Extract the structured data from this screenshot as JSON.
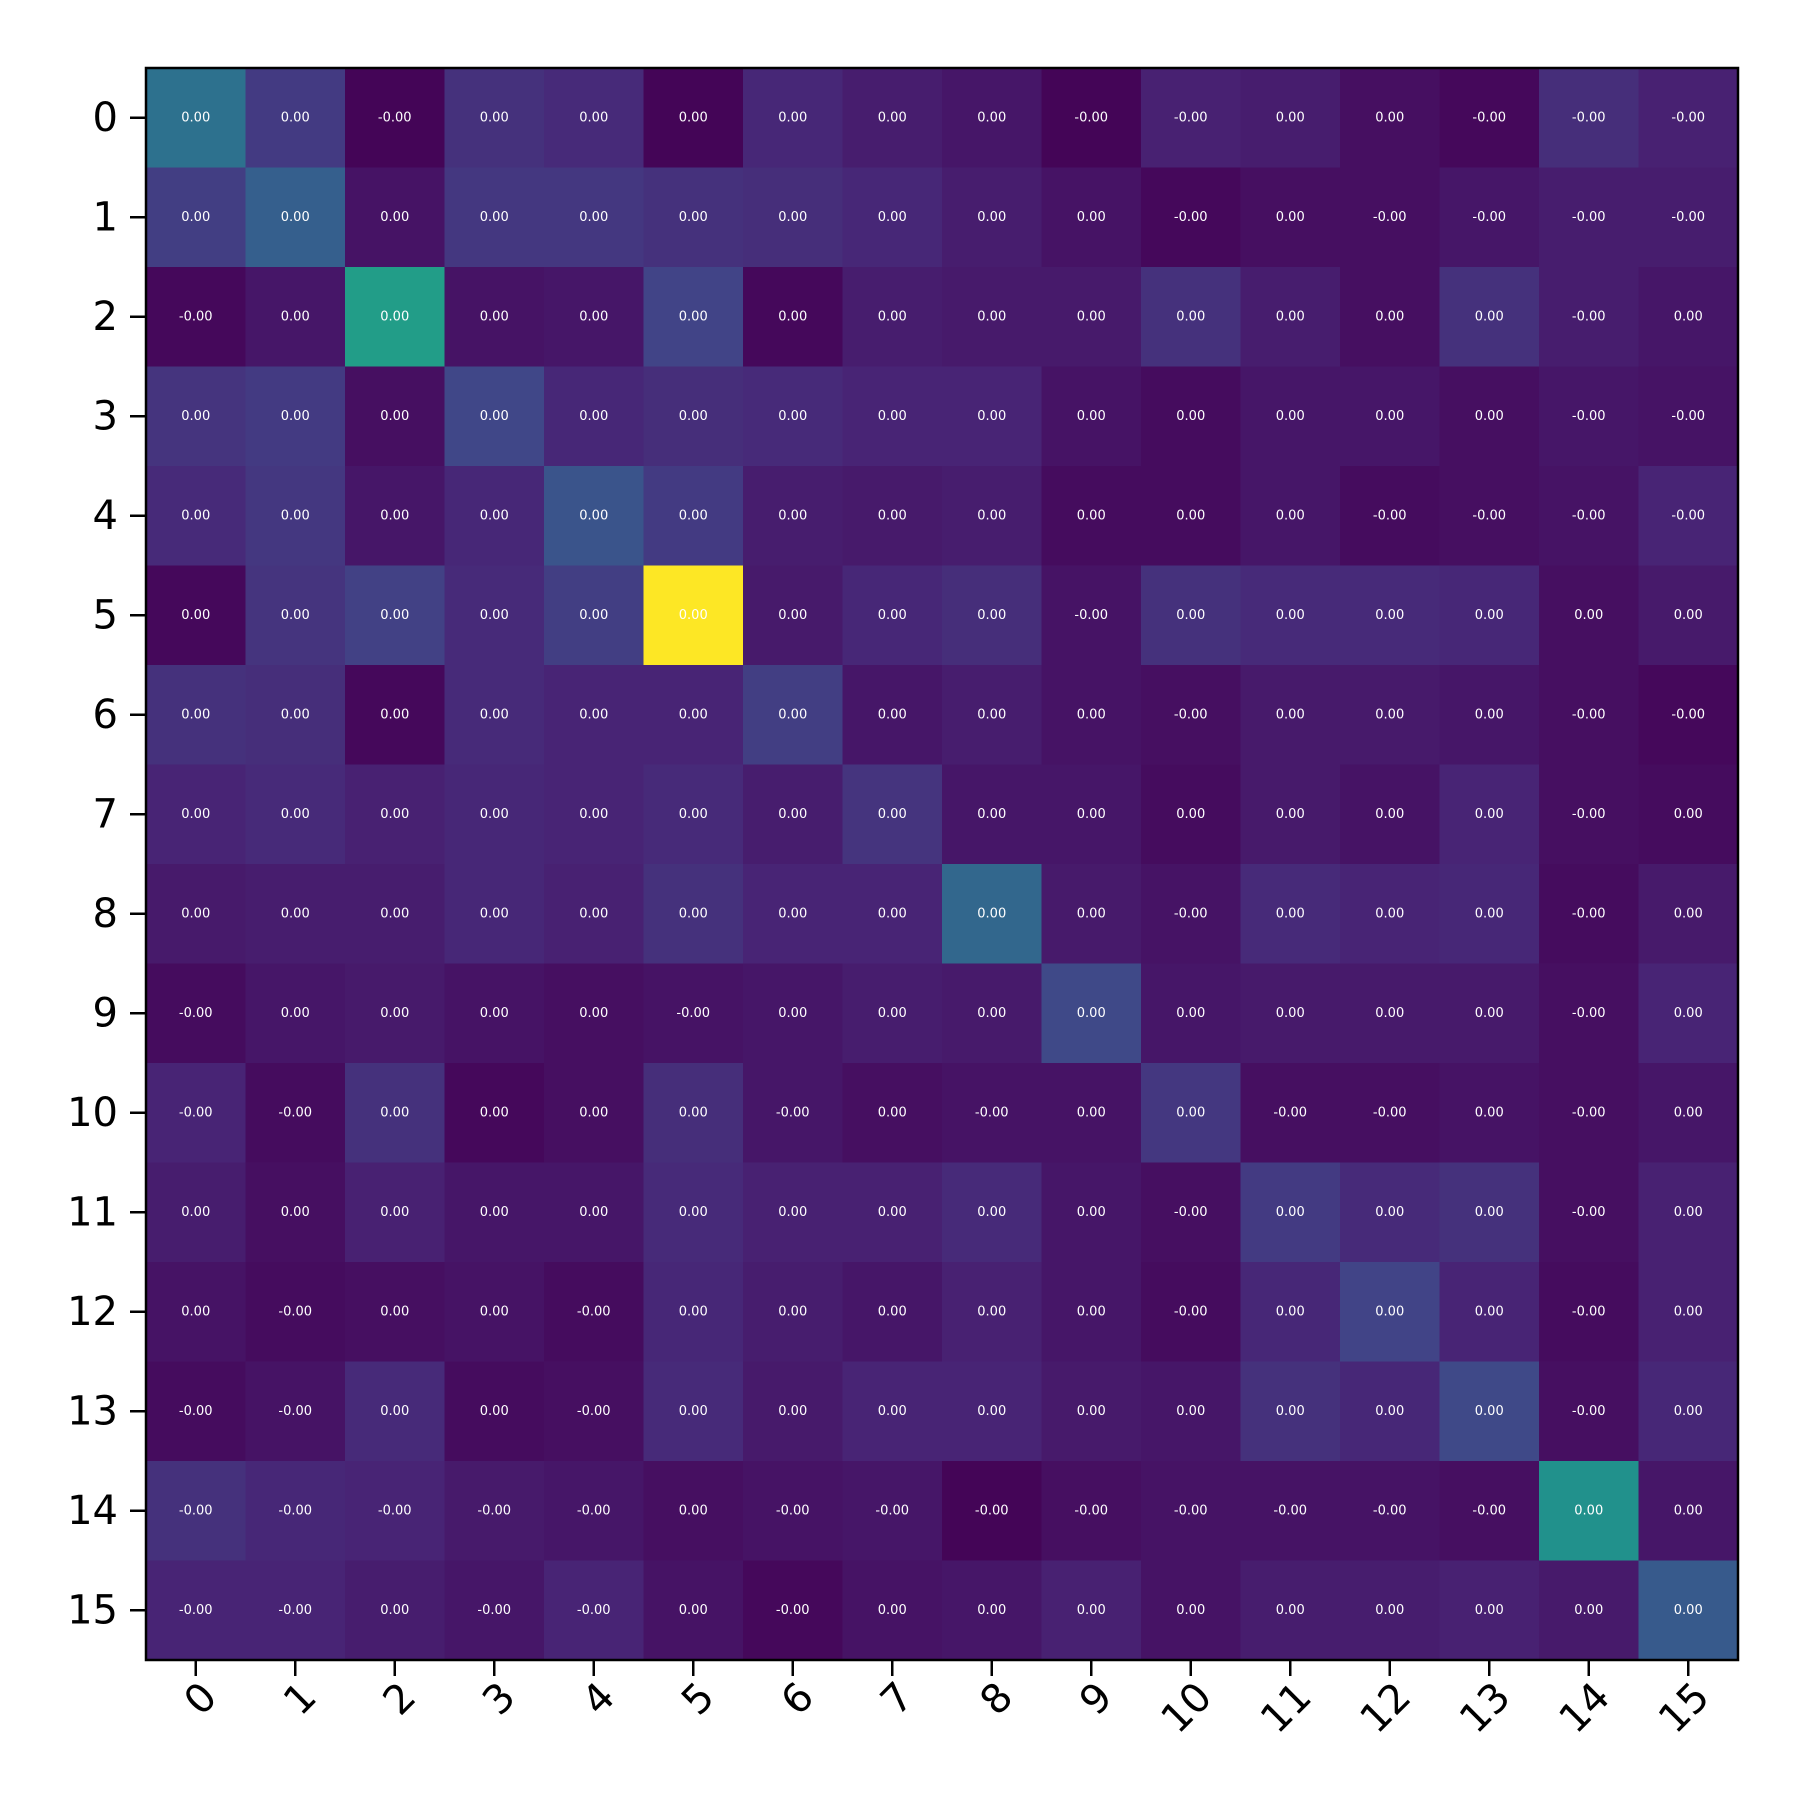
{
  "chart_data": {
    "type": "heatmap",
    "title": "",
    "xlabel": "",
    "ylabel": "",
    "colormap": "viridis",
    "x_categories": [
      "0",
      "1",
      "2",
      "3",
      "4",
      "5",
      "6",
      "7",
      "8",
      "9",
      "10",
      "11",
      "12",
      "13",
      "14",
      "15"
    ],
    "y_categories": [
      "0",
      "1",
      "2",
      "3",
      "4",
      "5",
      "6",
      "7",
      "8",
      "9",
      "10",
      "11",
      "12",
      "13",
      "14",
      "15"
    ],
    "labels": [
      [
        "0.00",
        "0.00",
        "-0.00",
        "0.00",
        "0.00",
        "0.00",
        "0.00",
        "0.00",
        "0.00",
        "-0.00",
        "-0.00",
        "0.00",
        "0.00",
        "-0.00",
        "-0.00",
        "-0.00"
      ],
      [
        "0.00",
        "0.00",
        "0.00",
        "0.00",
        "0.00",
        "0.00",
        "0.00",
        "0.00",
        "0.00",
        "0.00",
        "-0.00",
        "0.00",
        "-0.00",
        "-0.00",
        "-0.00",
        "-0.00"
      ],
      [
        "-0.00",
        "0.00",
        "0.00",
        "0.00",
        "0.00",
        "0.00",
        "0.00",
        "0.00",
        "0.00",
        "0.00",
        "0.00",
        "0.00",
        "0.00",
        "0.00",
        "-0.00",
        "0.00"
      ],
      [
        "0.00",
        "0.00",
        "0.00",
        "0.00",
        "0.00",
        "0.00",
        "0.00",
        "0.00",
        "0.00",
        "0.00",
        "0.00",
        "0.00",
        "0.00",
        "0.00",
        "-0.00",
        "-0.00"
      ],
      [
        "0.00",
        "0.00",
        "0.00",
        "0.00",
        "0.00",
        "0.00",
        "0.00",
        "0.00",
        "0.00",
        "0.00",
        "0.00",
        "0.00",
        "-0.00",
        "-0.00",
        "-0.00",
        "-0.00"
      ],
      [
        "0.00",
        "0.00",
        "0.00",
        "0.00",
        "0.00",
        "0.00",
        "0.00",
        "0.00",
        "0.00",
        "-0.00",
        "0.00",
        "0.00",
        "0.00",
        "0.00",
        "0.00",
        "0.00"
      ],
      [
        "0.00",
        "0.00",
        "0.00",
        "0.00",
        "0.00",
        "0.00",
        "0.00",
        "0.00",
        "0.00",
        "0.00",
        "-0.00",
        "0.00",
        "0.00",
        "0.00",
        "-0.00",
        "-0.00"
      ],
      [
        "0.00",
        "0.00",
        "0.00",
        "0.00",
        "0.00",
        "0.00",
        "0.00",
        "0.00",
        "0.00",
        "0.00",
        "0.00",
        "0.00",
        "0.00",
        "0.00",
        "-0.00",
        "0.00"
      ],
      [
        "0.00",
        "0.00",
        "0.00",
        "0.00",
        "0.00",
        "0.00",
        "0.00",
        "0.00",
        "0.00",
        "0.00",
        "-0.00",
        "0.00",
        "0.00",
        "0.00",
        "-0.00",
        "0.00"
      ],
      [
        "-0.00",
        "0.00",
        "0.00",
        "0.00",
        "0.00",
        "-0.00",
        "0.00",
        "0.00",
        "0.00",
        "0.00",
        "0.00",
        "0.00",
        "0.00",
        "0.00",
        "-0.00",
        "0.00"
      ],
      [
        "-0.00",
        "-0.00",
        "0.00",
        "0.00",
        "0.00",
        "0.00",
        "-0.00",
        "0.00",
        "-0.00",
        "0.00",
        "0.00",
        "-0.00",
        "-0.00",
        "0.00",
        "-0.00",
        "0.00"
      ],
      [
        "0.00",
        "0.00",
        "0.00",
        "0.00",
        "0.00",
        "0.00",
        "0.00",
        "0.00",
        "0.00",
        "0.00",
        "-0.00",
        "0.00",
        "0.00",
        "0.00",
        "-0.00",
        "0.00"
      ],
      [
        "0.00",
        "-0.00",
        "0.00",
        "0.00",
        "-0.00",
        "0.00",
        "0.00",
        "0.00",
        "0.00",
        "0.00",
        "-0.00",
        "0.00",
        "0.00",
        "0.00",
        "-0.00",
        "0.00"
      ],
      [
        "-0.00",
        "-0.00",
        "0.00",
        "0.00",
        "-0.00",
        "0.00",
        "0.00",
        "0.00",
        "0.00",
        "0.00",
        "0.00",
        "0.00",
        "0.00",
        "0.00",
        "-0.00",
        "0.00"
      ],
      [
        "-0.00",
        "-0.00",
        "-0.00",
        "-0.00",
        "-0.00",
        "0.00",
        "-0.00",
        "-0.00",
        "-0.00",
        "-0.00",
        "-0.00",
        "-0.00",
        "-0.00",
        "-0.00",
        "0.00",
        "0.00"
      ],
      [
        "-0.00",
        "-0.00",
        "0.00",
        "-0.00",
        "-0.00",
        "0.00",
        "-0.00",
        "0.00",
        "0.00",
        "0.00",
        "0.00",
        "0.00",
        "0.00",
        "0.00",
        "0.00",
        "0.00"
      ]
    ],
    "intensity": [
      [
        0.37,
        0.17,
        0.01,
        0.14,
        0.12,
        0.01,
        0.11,
        0.08,
        0.06,
        0.01,
        0.09,
        0.08,
        0.04,
        0.02,
        0.13,
        0.09
      ],
      [
        0.18,
        0.3,
        0.05,
        0.16,
        0.16,
        0.14,
        0.13,
        0.11,
        0.08,
        0.05,
        0.02,
        0.04,
        0.04,
        0.06,
        0.08,
        0.08
      ],
      [
        0.02,
        0.06,
        0.55,
        0.05,
        0.06,
        0.2,
        0.02,
        0.08,
        0.07,
        0.07,
        0.14,
        0.08,
        0.04,
        0.14,
        0.08,
        0.06
      ],
      [
        0.15,
        0.17,
        0.04,
        0.21,
        0.11,
        0.13,
        0.12,
        0.1,
        0.1,
        0.05,
        0.03,
        0.06,
        0.06,
        0.04,
        0.06,
        0.05
      ],
      [
        0.12,
        0.16,
        0.06,
        0.11,
        0.26,
        0.17,
        0.08,
        0.07,
        0.08,
        0.03,
        0.03,
        0.06,
        0.03,
        0.04,
        0.05,
        0.1
      ],
      [
        0.02,
        0.15,
        0.19,
        0.12,
        0.18,
        1.0,
        0.07,
        0.11,
        0.13,
        0.05,
        0.14,
        0.12,
        0.12,
        0.11,
        0.04,
        0.07
      ],
      [
        0.14,
        0.13,
        0.02,
        0.12,
        0.1,
        0.1,
        0.18,
        0.06,
        0.08,
        0.05,
        0.04,
        0.07,
        0.07,
        0.06,
        0.04,
        0.02
      ],
      [
        0.1,
        0.12,
        0.09,
        0.11,
        0.1,
        0.12,
        0.08,
        0.15,
        0.06,
        0.06,
        0.03,
        0.07,
        0.05,
        0.1,
        0.04,
        0.03
      ],
      [
        0.07,
        0.08,
        0.08,
        0.11,
        0.09,
        0.14,
        0.1,
        0.1,
        0.33,
        0.07,
        0.05,
        0.12,
        0.1,
        0.11,
        0.03,
        0.07
      ],
      [
        0.03,
        0.06,
        0.07,
        0.05,
        0.04,
        0.05,
        0.06,
        0.08,
        0.07,
        0.22,
        0.06,
        0.07,
        0.07,
        0.07,
        0.04,
        0.1
      ],
      [
        0.1,
        0.03,
        0.14,
        0.02,
        0.04,
        0.13,
        0.06,
        0.04,
        0.05,
        0.05,
        0.16,
        0.04,
        0.04,
        0.05,
        0.04,
        0.06
      ],
      [
        0.08,
        0.04,
        0.09,
        0.06,
        0.06,
        0.12,
        0.09,
        0.09,
        0.12,
        0.06,
        0.04,
        0.17,
        0.12,
        0.14,
        0.04,
        0.09
      ],
      [
        0.05,
        0.03,
        0.04,
        0.05,
        0.03,
        0.11,
        0.08,
        0.06,
        0.09,
        0.06,
        0.03,
        0.11,
        0.2,
        0.1,
        0.03,
        0.09
      ],
      [
        0.03,
        0.05,
        0.12,
        0.03,
        0.04,
        0.12,
        0.07,
        0.1,
        0.1,
        0.07,
        0.06,
        0.14,
        0.11,
        0.22,
        0.04,
        0.11
      ],
      [
        0.14,
        0.11,
        0.1,
        0.07,
        0.06,
        0.04,
        0.05,
        0.06,
        0.01,
        0.04,
        0.05,
        0.05,
        0.05,
        0.04,
        0.5,
        0.06
      ],
      [
        0.1,
        0.1,
        0.08,
        0.06,
        0.1,
        0.05,
        0.02,
        0.05,
        0.06,
        0.09,
        0.05,
        0.08,
        0.08,
        0.09,
        0.07,
        0.28
      ]
    ]
  }
}
